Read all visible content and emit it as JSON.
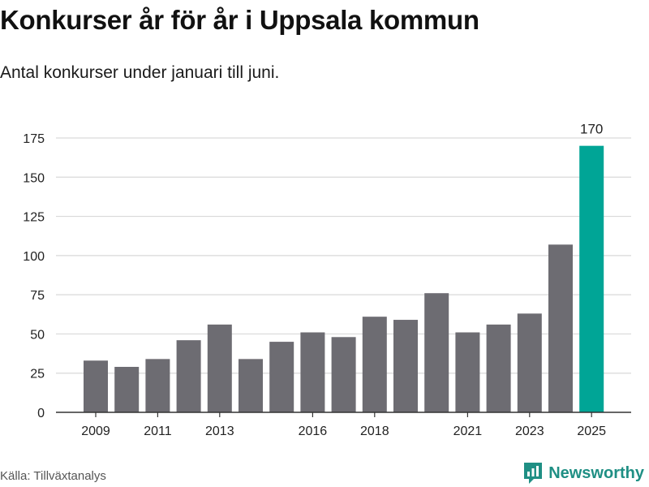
{
  "title": "Konkurser år för år i Uppsala kommun",
  "subtitle": "Antal konkurser under januari till juni.",
  "source": "Källa: Tillväxtanalys",
  "brand": {
    "name": "Newsworthy",
    "icon": "newsworthy-logo-icon"
  },
  "colors": {
    "bar": "#6d6c72",
    "highlight": "#00a596",
    "grid": "#d9d9d9",
    "axis": "#333333"
  },
  "chart_data": {
    "type": "bar",
    "title": "Konkurser år för år i Uppsala kommun",
    "subtitle": "Antal konkurser under januari till juni.",
    "categories": [
      "2009",
      "2010",
      "2011",
      "2012",
      "2013",
      "2014",
      "2015",
      "2016",
      "2017",
      "2018",
      "2019",
      "2020",
      "2021",
      "2022",
      "2023",
      "2024",
      "2025"
    ],
    "values": [
      33,
      29,
      34,
      46,
      56,
      34,
      45,
      51,
      48,
      61,
      59,
      76,
      51,
      56,
      63,
      107,
      170
    ],
    "x_tick_labels": [
      "2009",
      "2011",
      "2013",
      "2016",
      "2018",
      "2021",
      "2023",
      "2025"
    ],
    "y_ticks": [
      0,
      25,
      50,
      75,
      100,
      125,
      150,
      175
    ],
    "ylim": [
      0,
      175
    ],
    "highlight_index": 16,
    "data_labels": [
      {
        "index": 16,
        "text": "170"
      }
    ],
    "grid": true,
    "legend": "none"
  }
}
